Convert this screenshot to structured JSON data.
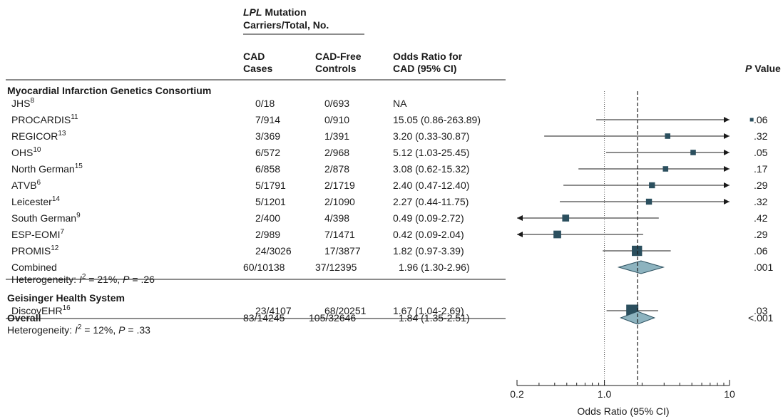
{
  "header": {
    "carriers_title_italic": "LPL",
    "carriers_title_rest": " Mutation",
    "carriers_subtitle": "Carriers/Total, No.",
    "col_cases_1": "CAD",
    "col_cases_2": "Cases",
    "col_controls_1": "CAD-Free",
    "col_controls_2": "Controls",
    "col_or_1": "Odds Ratio for",
    "col_or_2": "CAD (95% CI)",
    "pvalue_italic": "P",
    "pvalue_rest": " Value"
  },
  "colors": {
    "marker": "#2b4f5e",
    "diamond": "#8db3bf",
    "diamond_stroke": "#2b4f5e",
    "text": "#1a1a1a"
  },
  "chart_data": {
    "type": "forest",
    "x_scale": "log",
    "xlim": [
      0.2,
      10
    ],
    "xticks": [
      "0.2",
      "1.0",
      "10"
    ],
    "xlabel": "Odds Ratio (95% CI)",
    "reference_line": 1.0,
    "overall_line": 1.84,
    "groups": [
      {
        "name": "Myocardial Infarction Genetics Consortium",
        "studies": [
          {
            "label": "JHS",
            "ref": "8",
            "cases": "0/18",
            "controls": "0/693",
            "or_text": "NA",
            "or": null,
            "lo": null,
            "hi": null,
            "p": "",
            "arrow_left": false,
            "arrow_right": false,
            "weight": 0
          },
          {
            "label": "PROCARDIS",
            "ref": "11",
            "cases": "7/914",
            "controls": "0/910",
            "or_text": "15.05 (0.86-263.89)",
            "or": 15.05,
            "lo": 0.86,
            "hi": 263.89,
            "p": ".06",
            "arrow_left": false,
            "arrow_right": true,
            "weight": 0
          },
          {
            "label": "REGICOR",
            "ref": "13",
            "cases": "3/369",
            "controls": "1/391",
            "or_text": "3.20 (0.33-30.87)",
            "or": 3.2,
            "lo": 0.33,
            "hi": 30.87,
            "p": ".32",
            "arrow_left": false,
            "arrow_right": true,
            "weight": 1
          },
          {
            "label": "OHS",
            "ref": "10",
            "cases": "6/572",
            "controls": "2/968",
            "or_text": "5.12 (1.03-25.45)",
            "or": 5.12,
            "lo": 1.03,
            "hi": 25.45,
            "p": ".05",
            "arrow_left": false,
            "arrow_right": true,
            "weight": 1
          },
          {
            "label": "North German",
            "ref": "15",
            "cases": "6/858",
            "controls": "2/878",
            "or_text": "3.08 (0.62-15.32)",
            "or": 3.08,
            "lo": 0.62,
            "hi": 15.32,
            "p": ".17",
            "arrow_left": false,
            "arrow_right": true,
            "weight": 1
          },
          {
            "label": "ATVB",
            "ref": "6",
            "cases": "5/1791",
            "controls": "2/1719",
            "or_text": "2.40 (0.47-12.40)",
            "or": 2.4,
            "lo": 0.47,
            "hi": 12.4,
            "p": ".29",
            "arrow_left": false,
            "arrow_right": true,
            "weight": 1.3
          },
          {
            "label": "Leicester",
            "ref": "14",
            "cases": "5/1201",
            "controls": "2/1090",
            "or_text": "2.27 (0.44-11.75)",
            "or": 2.27,
            "lo": 0.44,
            "hi": 11.75,
            "p": ".32",
            "arrow_left": false,
            "arrow_right": true,
            "weight": 1.3
          },
          {
            "label": "South German",
            "ref": "9",
            "cases": "2/400",
            "controls": "4/398",
            "or_text": "0.49 (0.09-2.72)",
            "or": 0.49,
            "lo": 0.09,
            "hi": 2.72,
            "p": ".42",
            "arrow_left": true,
            "arrow_right": false,
            "weight": 1.8
          },
          {
            "label": "ESP-EOMI",
            "ref": "7",
            "cases": "2/989",
            "controls": "7/1471",
            "or_text": "0.42 (0.09-2.04)",
            "or": 0.42,
            "lo": 0.09,
            "hi": 2.04,
            "p": ".29",
            "arrow_left": true,
            "arrow_right": false,
            "weight": 2.2
          },
          {
            "label": "PROMIS",
            "ref": "12",
            "cases": "24/3026",
            "controls": "17/3877",
            "or_text": "1.82 (0.97-3.39)",
            "or": 1.82,
            "lo": 0.97,
            "hi": 3.39,
            "p": ".06",
            "arrow_left": false,
            "arrow_right": false,
            "weight": 3.6
          }
        ],
        "combined": {
          "label": "Combined",
          "cases": "60/10138",
          "controls": "37/12395",
          "or_text": "1.96 (1.30-2.96)",
          "or": 1.96,
          "lo": 1.3,
          "hi": 2.96,
          "p": ".001",
          "het_prefix": "Heterogeneity: ",
          "het_i": "I",
          "het_sup": "2",
          "het_mid": " = 21%, ",
          "het_p": "P",
          "het_end": " = .26"
        }
      },
      {
        "name": "Geisinger Health System",
        "studies": [
          {
            "label": "DiscovEHR",
            "ref": "16",
            "cases": "23/4107",
            "controls": "68/20251",
            "or_text": "1.67 (1.04-2.69)",
            "or": 1.67,
            "lo": 1.04,
            "hi": 2.69,
            "p": ".03",
            "arrow_left": false,
            "arrow_right": false,
            "weight": 4.6
          }
        ]
      }
    ],
    "overall": {
      "label": "Overall",
      "cases": "83/14245",
      "controls": "105/32646",
      "or_text": "1.84 (1.35-2.51)",
      "or": 1.84,
      "lo": 1.35,
      "hi": 2.51,
      "p": "<.001",
      "het_prefix": "Heterogeneity: ",
      "het_i": "I",
      "het_sup": "2",
      "het_mid": " = 12%, ",
      "het_p": "P",
      "het_end": " = .33"
    }
  }
}
